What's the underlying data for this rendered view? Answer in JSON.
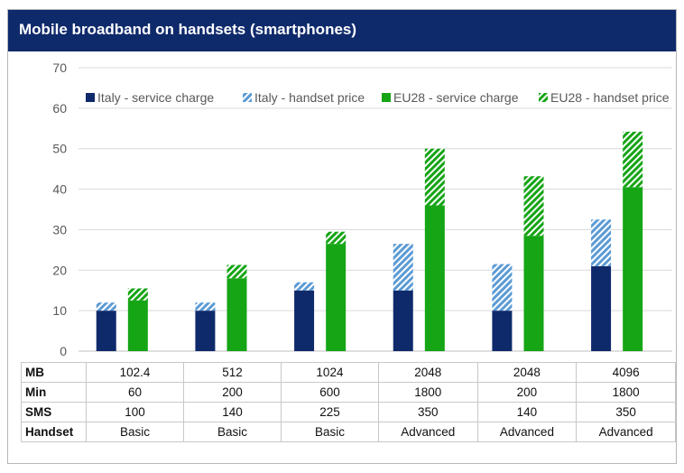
{
  "title": "Mobile broadband  on handsets (smartphones)",
  "colors": {
    "italy_service": "#0f2a6b",
    "italy_handset": "#5b9bd5",
    "eu_service": "#15a515",
    "eu_handset": "#15a515"
  },
  "chart_data": {
    "type": "bar",
    "stacked": true,
    "categories": [
      "1",
      "2",
      "3",
      "4",
      "5",
      "6"
    ],
    "series": [
      {
        "name": "Italy - service charge",
        "stack": "Italy",
        "pattern": "solid",
        "values": [
          10,
          10,
          15,
          15,
          10,
          21
        ]
      },
      {
        "name": "Italy - handset price",
        "stack": "Italy",
        "pattern": "hatch",
        "values": [
          2,
          2,
          2,
          11.5,
          11.5,
          11.5
        ]
      },
      {
        "name": "EU28 - service charge",
        "stack": "EU28",
        "pattern": "solid",
        "values": [
          12.5,
          18,
          26.5,
          36,
          28.5,
          40.5
        ]
      },
      {
        "name": "EU28 - handset price",
        "stack": "EU28",
        "pattern": "hatch",
        "values": [
          3,
          3.3,
          3,
          14,
          14.7,
          13.7
        ]
      }
    ],
    "ylim": [
      0,
      70
    ],
    "yticks": [
      "0",
      "10",
      "20",
      "30",
      "40",
      "50",
      "60",
      "70"
    ],
    "grid": true,
    "legend_position": "top"
  },
  "table": {
    "rows": [
      {
        "label": "MB",
        "values": [
          "102.4",
          "512",
          "1024",
          "2048",
          "2048",
          "4096"
        ]
      },
      {
        "label": "Min",
        "values": [
          "60",
          "200",
          "600",
          "1800",
          "200",
          "1800"
        ]
      },
      {
        "label": "SMS",
        "values": [
          "100",
          "140",
          "225",
          "350",
          "140",
          "350"
        ]
      },
      {
        "label": "Handset",
        "values": [
          "Basic",
          "Basic",
          "Basic",
          "Advanced",
          "Advanced",
          "Advanced"
        ]
      }
    ]
  }
}
